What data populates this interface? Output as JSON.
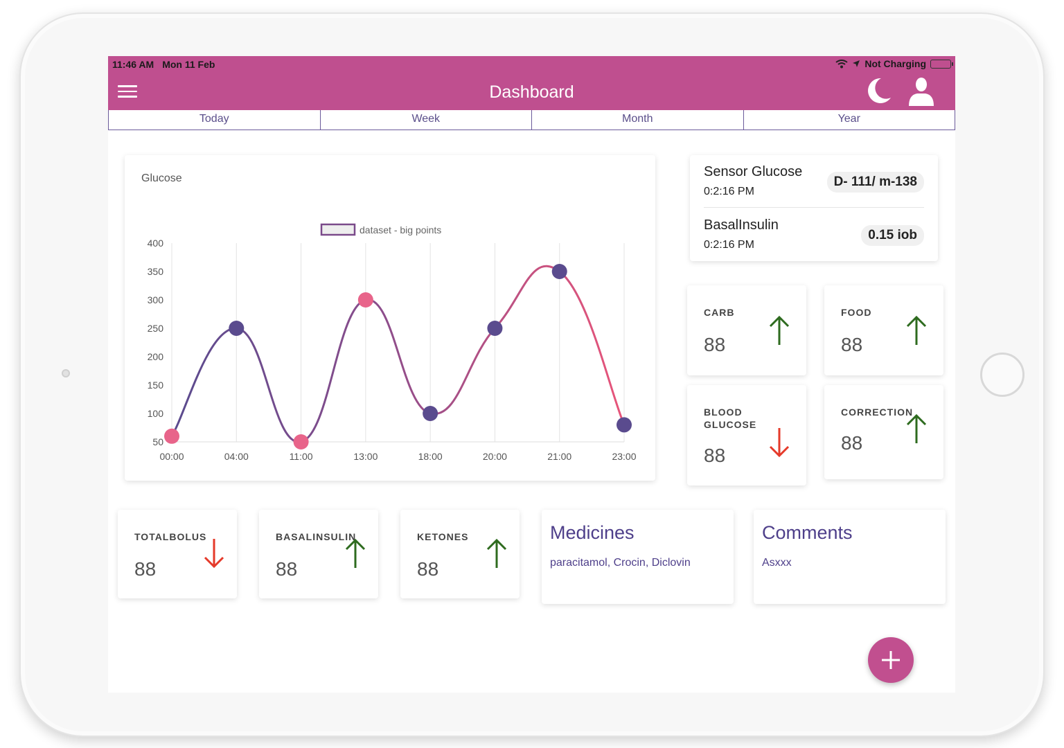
{
  "status_bar": {
    "time": "11:46 AM",
    "date": "Mon 11 Feb",
    "charging": "Not Charging"
  },
  "header": {
    "title": "Dashboard"
  },
  "tabs": [
    "Today",
    "Week",
    "Month",
    "Year"
  ],
  "chart_card": {
    "title": "Glucose"
  },
  "chart_data": {
    "type": "line",
    "legend": "dataset - big points",
    "categories": [
      "00:00",
      "04:00",
      "11:00",
      "13:00",
      "18:00",
      "20:00",
      "21:00",
      "23:00"
    ],
    "series": [
      {
        "name": "dataset - big points",
        "values": [
          60,
          250,
          50,
          300,
          100,
          250,
          350,
          80
        ]
      }
    ],
    "point_colors": [
      "#e8648a",
      "#5a4b8e",
      "#e8648a",
      "#e8648a",
      "#5a4b8e",
      "#5a4b8e",
      "#5a4b8e",
      "#5a4b8e"
    ],
    "yticks": [
      400,
      350,
      300,
      250,
      200,
      150,
      100,
      50
    ],
    "ylim": [
      50,
      400
    ]
  },
  "sensor": {
    "glucose_label": "Sensor Glucose",
    "glucose_time": "0:2:16 PM",
    "glucose_value": "D- 111/ m-138",
    "basal_label": "BasalInsulin",
    "basal_time": "0:2:16 PM",
    "basal_value": "0.15 iob"
  },
  "stats": {
    "carb": {
      "label": "CARB",
      "value": "88",
      "trend": "up"
    },
    "food": {
      "label": "FOOD",
      "value": "88",
      "trend": "up"
    },
    "blood_glucose": {
      "label": "BLOOD GLUCOSE",
      "value": "88",
      "trend": "down"
    },
    "correction": {
      "label": "CORRECTION",
      "value": "88",
      "trend": "up"
    },
    "totalbolus": {
      "label": "TOTALBOLUS",
      "value": "88",
      "trend": "down"
    },
    "basalinsulin": {
      "label": "BASALINSULIN",
      "value": "88",
      "trend": "up"
    },
    "ketones": {
      "label": "KETONES",
      "value": "88",
      "trend": "up"
    }
  },
  "medicines": {
    "title": "Medicines",
    "text": "paracitamol, Crocin, Diclovin"
  },
  "comments": {
    "title": "Comments",
    "text": "Asxxx"
  },
  "colors": {
    "header": "#bf4f8f",
    "accent": "#4e3f8a",
    "up": "#2e6b1f",
    "down": "#e53a2a"
  }
}
